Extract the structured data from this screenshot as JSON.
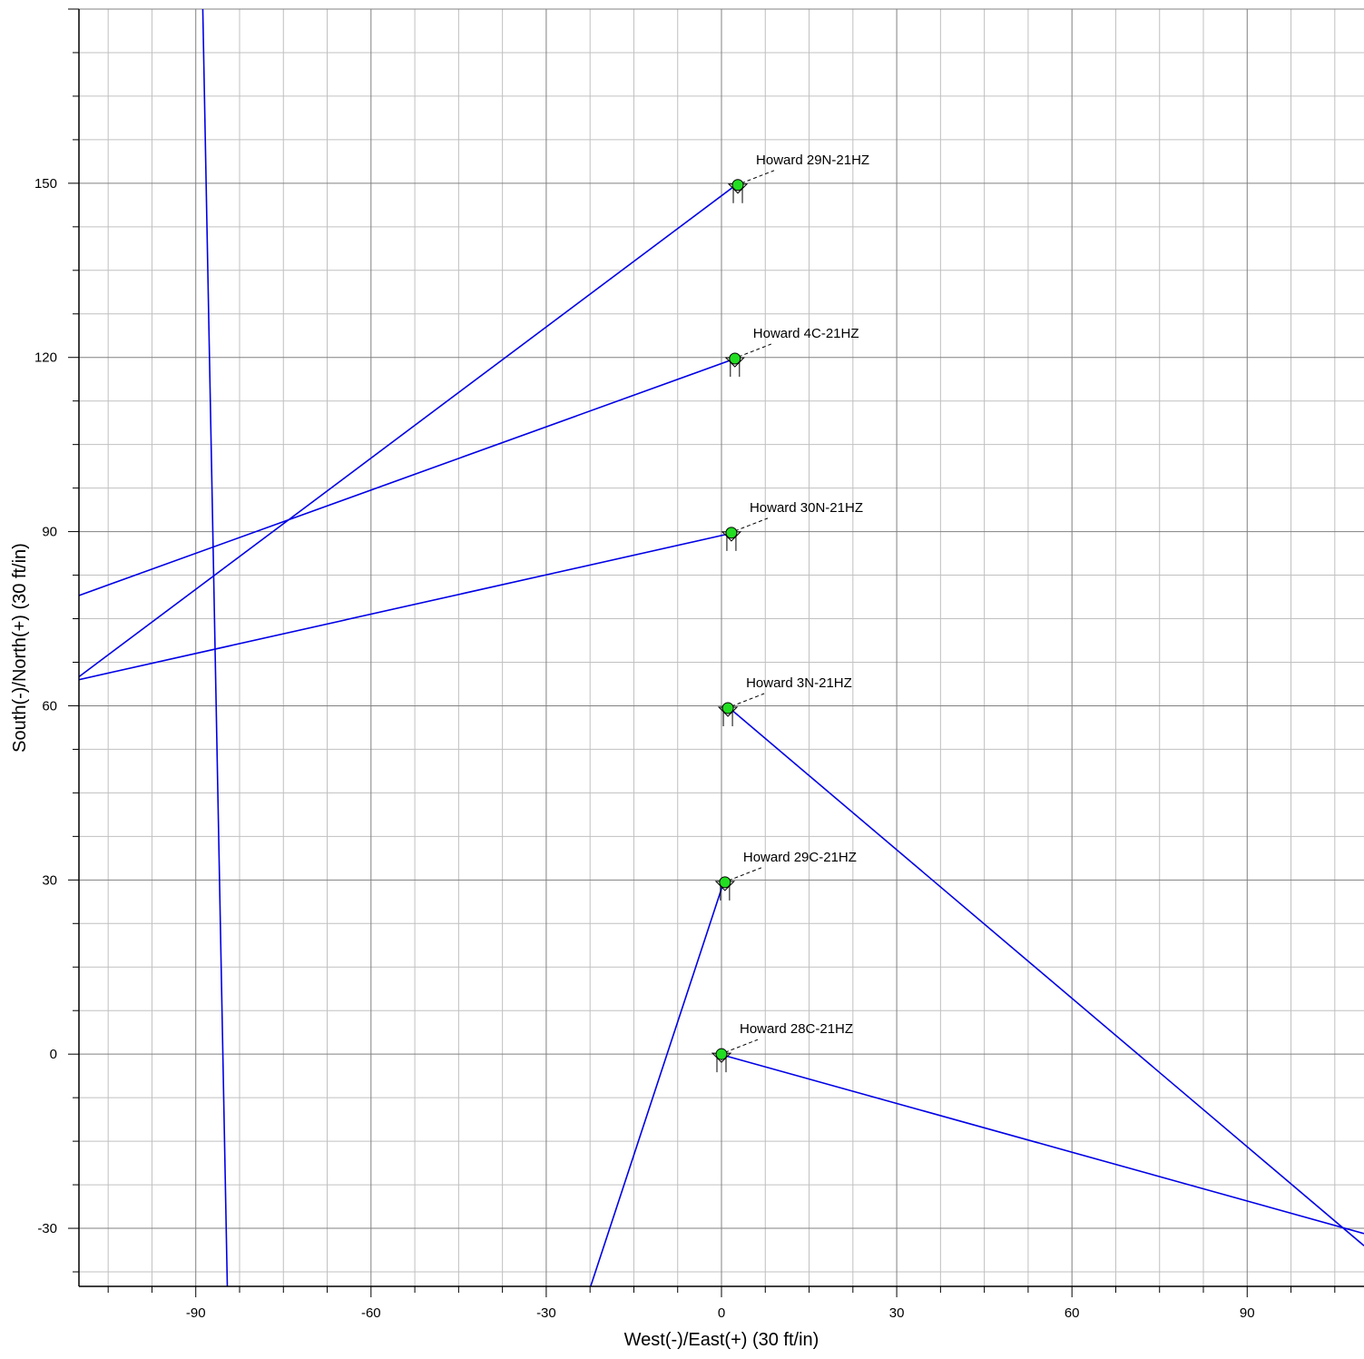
{
  "chart_data": {
    "type": "scatter",
    "xlabel": "West(-)/East(+) (30 ft/in)",
    "ylabel": "South(-)/North(+) (30 ft/in)",
    "xlim": [
      -110,
      110
    ],
    "ylim": [
      -40,
      180
    ],
    "x_ticks": [
      -90,
      -60,
      -30,
      0,
      30,
      60,
      90
    ],
    "y_ticks": [
      -30,
      0,
      30,
      60,
      90,
      120,
      150
    ],
    "major_grid_step": 30,
    "minor_grid_step": 7.5,
    "grid": true,
    "colors": {
      "trajectory": "#0000e6",
      "well_marker": "#22dd22",
      "grid_major": "#808080",
      "grid_minor": "#c0c0c0"
    },
    "wells": [
      {
        "name": "Howard 29N-21HZ",
        "x": 2.8,
        "y": 149.7
      },
      {
        "name": "Howard 4C-21HZ",
        "x": 2.3,
        "y": 119.8
      },
      {
        "name": "Howard 30N-21HZ",
        "x": 1.7,
        "y": 89.8
      },
      {
        "name": "Howard 3N-21HZ",
        "x": 1.1,
        "y": 59.6
      },
      {
        "name": "Howard 29C-21HZ",
        "x": 0.6,
        "y": 29.6
      },
      {
        "name": "Howard 28C-21HZ",
        "x": 0.0,
        "y": 0.0
      }
    ],
    "trajectories": [
      {
        "from": "Howard 29N-21HZ",
        "points": [
          [
            2.2,
            149.5
          ],
          [
            -110.0,
            65.0
          ]
        ]
      },
      {
        "from": "Howard 4C-21HZ",
        "points": [
          [
            1.8,
            119.6
          ],
          [
            -110.0,
            79.0
          ]
        ]
      },
      {
        "from": "Howard 30N-21HZ",
        "points": [
          [
            1.2,
            89.6
          ],
          [
            -110.0,
            64.5
          ]
        ]
      },
      {
        "from": "Howard 3N-21HZ",
        "points": [
          [
            1.6,
            59.4
          ],
          [
            110.0,
            -33.0
          ]
        ]
      },
      {
        "from": "Howard 29C-21HZ",
        "points": [
          [
            0.3,
            29.4
          ],
          [
            -22.4,
            -40.0
          ]
        ]
      },
      {
        "from": "Howard 28C-21HZ",
        "points": [
          [
            0.4,
            -0.2
          ],
          [
            110.0,
            -30.9
          ]
        ]
      },
      {
        "from": "",
        "points": [
          [
            -88.8,
            180.0
          ],
          [
            -84.6,
            -40.0
          ]
        ]
      }
    ]
  }
}
